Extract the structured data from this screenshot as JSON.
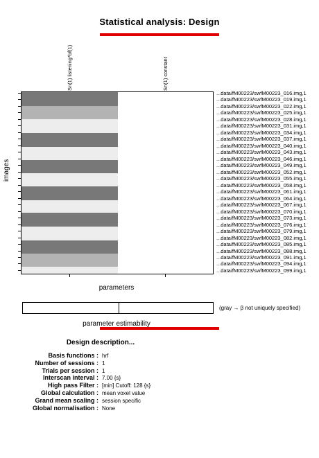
{
  "title": "Statistical analysis: Design",
  "columns": [
    "Sn(1) listening*bf(1)",
    "Sn(1) constant"
  ],
  "rows": [
    "...data/fM00223/swfM00223_016.img,1",
    "...data/fM00223/swfM00223_019.img,1",
    "...data/fM00223/swfM00223_022.img,1",
    "...data/fM00223/swfM00223_025.img,1",
    "...data/fM00223/swfM00223_028.img,1",
    "...data/fM00223/swfM00223_031.img,1",
    "...data/fM00223/swfM00223_034.img,1",
    "...data/fM00223/swfM00223_037.img,1",
    "...data/fM00223/swfM00223_040.img,1",
    "...data/fM00223/swfM00223_043.img,1",
    "...data/fM00223/swfM00223_046.img,1",
    "...data/fM00223/swfM00223_049.img,1",
    "...data/fM00223/swfM00223_052.img,1",
    "...data/fM00223/swfM00223_055.img,1",
    "...data/fM00223/swfM00223_058.img,1",
    "...data/fM00223/swfM00223_061.img,1",
    "...data/fM00223/swfM00223_064.img,1",
    "...data/fM00223/swfM00223_067.img,1",
    "...data/fM00223/swfM00223_070.img,1",
    "...data/fM00223/swfM00223_073.img,1",
    "...data/fM00223/swfM00223_076.img,1",
    "...data/fM00223/swfM00223_079.img,1",
    "...data/fM00223/swfM00223_082.img,1",
    "...data/fM00223/swfM00223_085.img,1",
    "...data/fM00223/swfM00223_088.img,1",
    "...data/fM00223/swfM00223_091.img,1",
    "...data/fM00223/swfM00223_094.img,1",
    "...data/fM00223/swfM00223_099.img,1"
  ],
  "design_bands": [
    {
      "start": 0.0,
      "end": 0.075,
      "level": 0.47
    },
    {
      "start": 0.075,
      "end": 0.15,
      "level": 0.7
    },
    {
      "start": 0.15,
      "end": 0.225,
      "level": 0.93
    },
    {
      "start": 0.225,
      "end": 0.3,
      "level": 0.47
    },
    {
      "start": 0.3,
      "end": 0.375,
      "level": 0.93
    },
    {
      "start": 0.375,
      "end": 0.445,
      "level": 0.47
    },
    {
      "start": 0.445,
      "end": 0.52,
      "level": 0.93
    },
    {
      "start": 0.52,
      "end": 0.595,
      "level": 0.47
    },
    {
      "start": 0.595,
      "end": 0.665,
      "level": 0.93
    },
    {
      "start": 0.665,
      "end": 0.74,
      "level": 0.47
    },
    {
      "start": 0.74,
      "end": 0.815,
      "level": 0.93
    },
    {
      "start": 0.815,
      "end": 0.89,
      "level": 0.47
    },
    {
      "start": 0.89,
      "end": 0.96,
      "level": 0.7
    },
    {
      "start": 0.96,
      "end": 1.0,
      "level": 0.93
    }
  ],
  "axes": {
    "ylabel": "images",
    "xlabel": "parameters"
  },
  "estimability": {
    "legend": "(gray → β not uniquely specified)",
    "label": "parameter estimability"
  },
  "description": {
    "title": "Design description...",
    "items": [
      {
        "key": "Basis functions :",
        "value": "hrf"
      },
      {
        "key": "Number of sessions :",
        "value": "1"
      },
      {
        "key": "Trials per session :",
        "value": "1"
      },
      {
        "key": "Interscan interval :",
        "value": "7.00 {s}"
      },
      {
        "key": "High pass Filter :",
        "value": "[min] Cutoff: 128 {s}"
      },
      {
        "key": "Global calculation :",
        "value": "mean voxel value"
      },
      {
        "key": "Grand mean scaling :",
        "value": "session specific"
      },
      {
        "key": "Global normalisation :",
        "value": "None"
      }
    ]
  },
  "colors": {
    "accent": "#e00000",
    "border": "#000000"
  }
}
